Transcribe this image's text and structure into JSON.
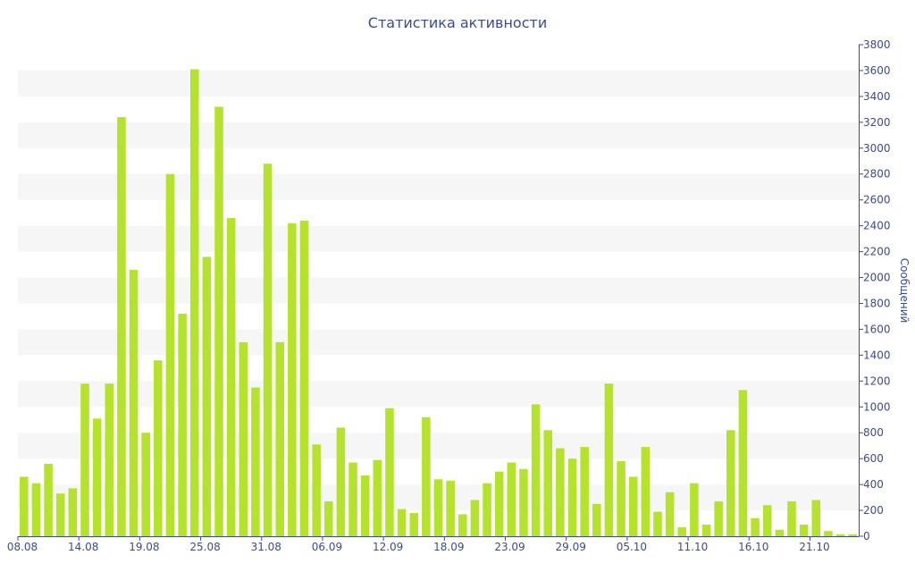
{
  "chart_data": {
    "type": "bar",
    "title": "Статистика активности",
    "xlabel": "",
    "ylabel": "Сообщений",
    "y_axis_side": "right",
    "ylim": [
      0,
      3800
    ],
    "y_ticks": [
      0,
      200,
      400,
      600,
      800,
      1000,
      1200,
      1400,
      1600,
      1800,
      2000,
      2200,
      2400,
      2600,
      2800,
      3000,
      3200,
      3400,
      3600,
      3800
    ],
    "x_tick_labels": [
      {
        "label": "08.08",
        "index": 0
      },
      {
        "label": "14.08",
        "index": 5
      },
      {
        "label": "19.08",
        "index": 10
      },
      {
        "label": "25.08",
        "index": 15
      },
      {
        "label": "31.08",
        "index": 20
      },
      {
        "label": "06.09",
        "index": 25
      },
      {
        "label": "12.09",
        "index": 30
      },
      {
        "label": "18.09",
        "index": 35
      },
      {
        "label": "23.09",
        "index": 40
      },
      {
        "label": "29.09",
        "index": 45
      },
      {
        "label": "05.10",
        "index": 50
      },
      {
        "label": "11.10",
        "index": 55
      },
      {
        "label": "16.10",
        "index": 60
      },
      {
        "label": "21.10",
        "index": 65
      }
    ],
    "values": [
      460,
      410,
      560,
      330,
      370,
      1180,
      910,
      1180,
      3240,
      2060,
      800,
      1360,
      2800,
      1720,
      3610,
      2160,
      3320,
      2460,
      1500,
      1150,
      2880,
      1500,
      2420,
      2440,
      710,
      270,
      840,
      570,
      470,
      590,
      990,
      210,
      180,
      920,
      440,
      430,
      170,
      280,
      410,
      500,
      570,
      520,
      1020,
      820,
      680,
      600,
      690,
      250,
      1180,
      580,
      460,
      690,
      190,
      340,
      70,
      410,
      90,
      270,
      820,
      1130,
      140,
      240,
      50,
      270,
      90,
      280,
      40,
      15,
      15
    ],
    "grid": true,
    "legend": "none",
    "colors": {
      "bar": "#b5e22c",
      "band": "#f6f6f6",
      "text": "#3a4d8c",
      "axis": "#3a4d8c"
    }
  }
}
